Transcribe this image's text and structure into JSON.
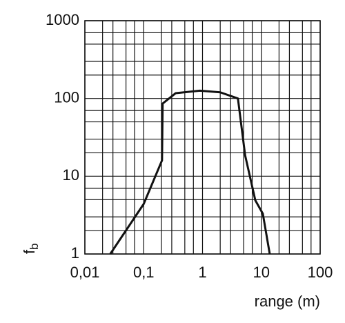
{
  "chart_data": {
    "type": "line",
    "xlabel": "range (m)",
    "ylabel": {
      "text": "f",
      "subscript": "b"
    },
    "x": [
      0.027,
      0.1,
      0.205,
      0.21,
      0.35,
      0.9,
      2,
      4,
      5.3,
      7.9,
      10.6,
      13.9
    ],
    "series": [
      {
        "color": "#111111",
        "values": [
          1,
          4.4,
          16,
          86,
          117,
          126,
          120,
          100,
          18.6,
          4.9,
          3.3,
          1
        ]
      }
    ],
    "xlim": [
      0.01,
      100
    ],
    "ylim": [
      1,
      1000
    ],
    "xticks": [
      {
        "value": 0.01,
        "label": "0,01"
      },
      {
        "value": 0.1,
        "label": "0,1"
      },
      1,
      10,
      100
    ],
    "yticks": [
      1,
      10,
      100,
      1000
    ],
    "xscale": "log",
    "yscale": "log",
    "grid": true,
    "minor_grid": [
      2,
      3,
      5,
      7
    ]
  }
}
